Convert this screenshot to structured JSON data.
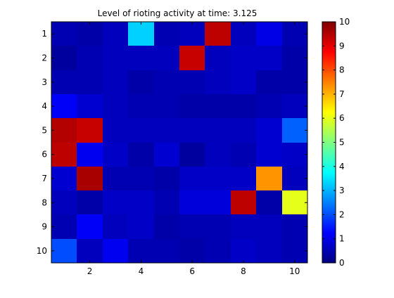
{
  "chart_data": {
    "type": "heatmap",
    "title": "Level of rioting activity at time: 3.125",
    "xlabel": "",
    "ylabel": "",
    "x_ticks": [
      2,
      4,
      6,
      8,
      10
    ],
    "y_ticks": [
      1,
      2,
      3,
      4,
      5,
      6,
      7,
      8,
      9,
      10
    ],
    "rows": 10,
    "cols": 10,
    "colormap": "jet",
    "clim": [
      0,
      10
    ],
    "colorbar_ticks": [
      0,
      1,
      2,
      3,
      4,
      5,
      6,
      7,
      8,
      9,
      10
    ],
    "values": [
      [
        0.5,
        0.4,
        0.6,
        3.3,
        0.5,
        0.6,
        9.4,
        0.6,
        1.0,
        0.5
      ],
      [
        0.3,
        0.5,
        0.6,
        0.6,
        0.6,
        9.3,
        0.6,
        0.7,
        0.7,
        0.4
      ],
      [
        0.5,
        0.5,
        0.6,
        0.4,
        0.5,
        0.5,
        0.6,
        0.7,
        0.4,
        0.4
      ],
      [
        1.2,
        0.8,
        0.6,
        0.5,
        0.5,
        0.4,
        0.4,
        0.4,
        0.5,
        0.6
      ],
      [
        9.5,
        9.3,
        0.6,
        0.6,
        0.6,
        0.6,
        0.6,
        0.6,
        0.8,
        2.2
      ],
      [
        9.4,
        1.1,
        0.7,
        0.4,
        0.8,
        0.3,
        0.6,
        0.5,
        0.8,
        0.7
      ],
      [
        0.8,
        9.6,
        0.5,
        0.5,
        0.4,
        0.7,
        0.7,
        0.7,
        7.3,
        0.6
      ],
      [
        0.6,
        0.4,
        0.7,
        0.7,
        0.5,
        0.9,
        0.9,
        9.4,
        0.4,
        6.0
      ],
      [
        0.5,
        1.2,
        0.6,
        0.7,
        0.4,
        0.5,
        0.5,
        0.6,
        0.6,
        0.5
      ],
      [
        2.0,
        0.6,
        1.1,
        0.5,
        0.5,
        0.4,
        0.5,
        0.7,
        0.6,
        0.5
      ]
    ]
  }
}
